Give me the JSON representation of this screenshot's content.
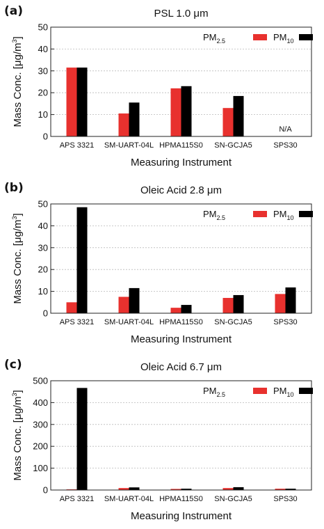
{
  "colors": {
    "pm25": "#e8312e",
    "pm10": "#000000",
    "grid": "#b9b9b9"
  },
  "chart_data": [
    {
      "type": "bar",
      "panel_label": "(a)",
      "title_prefix": "PSL 1.0 ",
      "title_unit": "μm",
      "categories": [
        "APS 3321",
        "SM-UART-04L",
        "HPMA115S0",
        "SN-GCJA5",
        "SPS30"
      ],
      "series": [
        {
          "name": "PM2.5",
          "key": "pm25",
          "values": [
            31.5,
            10.5,
            22,
            13,
            null
          ]
        },
        {
          "name": "PM10",
          "key": "pm10",
          "values": [
            31.5,
            15.5,
            23,
            18.5,
            null
          ]
        }
      ],
      "annotations": [
        {
          "category": "SPS30",
          "text": "N/A"
        }
      ],
      "ylim": [
        0,
        50
      ],
      "yticks": [
        0,
        10,
        20,
        30,
        40,
        50
      ],
      "xlabel": "Measuring Instrument",
      "ylabel": "Mass Conc. [μg/m3]",
      "grid": true,
      "legend_position": "top-right"
    },
    {
      "type": "bar",
      "panel_label": "(b)",
      "title_prefix": "Oleic Acid 2.8 ",
      "title_unit": "μm",
      "categories": [
        "APS 3321",
        "SM-UART-04L",
        "HPMA115S0",
        "SN-GCJA5",
        "SPS30"
      ],
      "series": [
        {
          "name": "PM2.5",
          "key": "pm25",
          "values": [
            5,
            7.5,
            2.5,
            7,
            8.8
          ]
        },
        {
          "name": "PM10",
          "key": "pm10",
          "values": [
            48.5,
            11.5,
            3.8,
            8.3,
            11.8
          ]
        }
      ],
      "annotations": [],
      "ylim": [
        0,
        50
      ],
      "yticks": [
        0,
        10,
        20,
        30,
        40,
        50
      ],
      "xlabel": "Measuring Instrument",
      "ylabel": "Mass Conc. [μg/m3]",
      "grid": true,
      "legend_position": "top-right"
    },
    {
      "type": "bar",
      "panel_label": "(c)",
      "title_prefix": "Oleic Acid 6.7 ",
      "title_unit": "μm",
      "categories": [
        "APS 3321",
        "SM-UART-04L",
        "HPMA115S0",
        "SN-GCJA5",
        "SPS30"
      ],
      "series": [
        {
          "name": "PM2.5",
          "key": "pm25",
          "values": [
            3,
            9,
            5,
            9,
            6
          ]
        },
        {
          "name": "PM10",
          "key": "pm10",
          "values": [
            467,
            12,
            6,
            13,
            6
          ]
        }
      ],
      "annotations": [],
      "ylim": [
        0,
        500
      ],
      "yticks": [
        0,
        100,
        200,
        300,
        400,
        500
      ],
      "xlabel": "Measuring Instrument",
      "ylabel": "Mass Conc. [μg/m3]",
      "grid": true,
      "legend_position": "top-right"
    }
  ]
}
